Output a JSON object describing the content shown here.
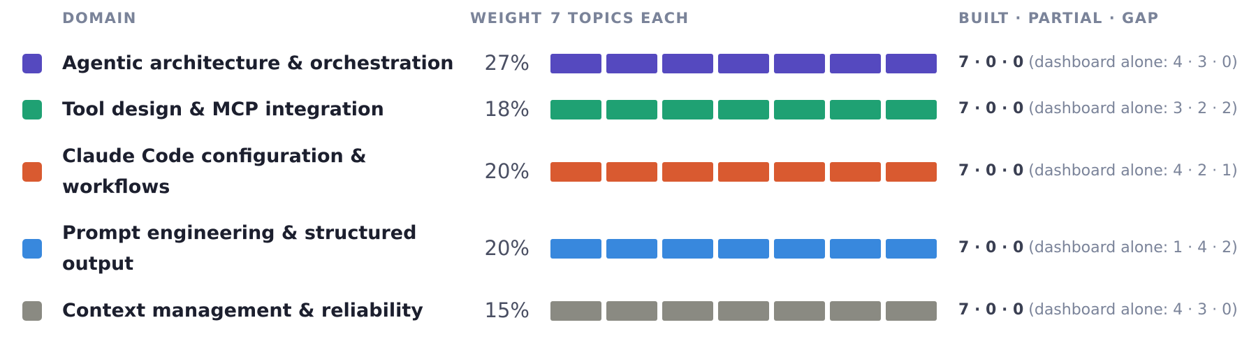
{
  "header": {
    "domain": "DOMAIN",
    "weight": "WEIGHT",
    "topics": "7 TOPICS EACH",
    "status": "BUILT · PARTIAL · GAP"
  },
  "rows": [
    {
      "name_lines": [
        "Agentic architecture & orchestration"
      ],
      "color": "#5549bf",
      "weight": "27%",
      "built": 7,
      "status": "7 · 0 · 0",
      "dashboard": "(dashboard alone: 4 · 3 · 0)"
    },
    {
      "name_lines": [
        "Tool design & MCP integration"
      ],
      "color": "#1fa173",
      "weight": "18%",
      "built": 7,
      "status": "7 · 0 · 0",
      "dashboard": "(dashboard alone: 3 · 2 · 2)"
    },
    {
      "name_lines": [
        "Claude Code configuration &",
        "workflows"
      ],
      "color": "#d95a30",
      "weight": "20%",
      "built": 7,
      "status": "7 · 0 · 0",
      "dashboard": "(dashboard alone: 4 · 2 · 1)"
    },
    {
      "name_lines": [
        "Prompt engineering & structured",
        "output"
      ],
      "color": "#3888dd",
      "weight": "20%",
      "built": 7,
      "status": "7 · 0 · 0",
      "dashboard": "(dashboard alone: 1 · 4 · 2)"
    },
    {
      "name_lines": [
        "Context management & reliability"
      ],
      "color": "#8a8a82",
      "weight": "15%",
      "built": 7,
      "status": "7 · 0 · 0",
      "dashboard": "(dashboard alone: 4 · 3 · 0)"
    }
  ]
}
